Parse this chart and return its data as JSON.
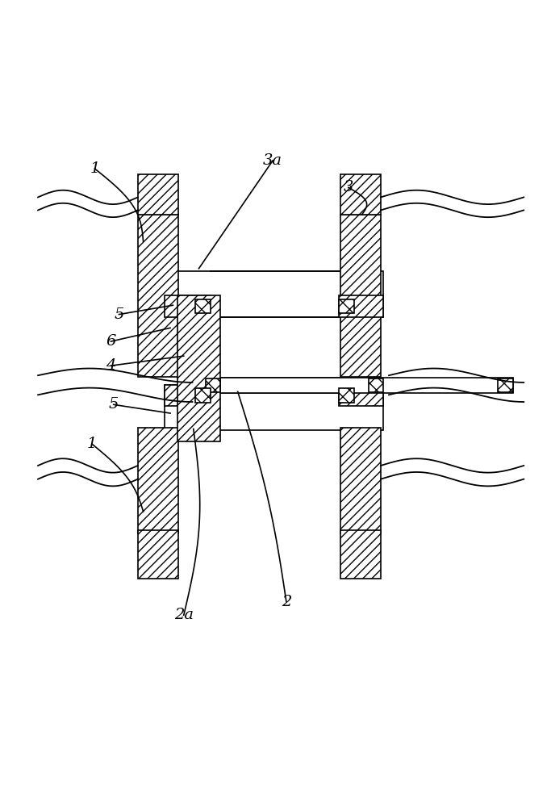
{
  "background_color": "#ffffff",
  "line_color": "#000000",
  "figsize": [
    6.83,
    10.0
  ],
  "dpi": 100
}
